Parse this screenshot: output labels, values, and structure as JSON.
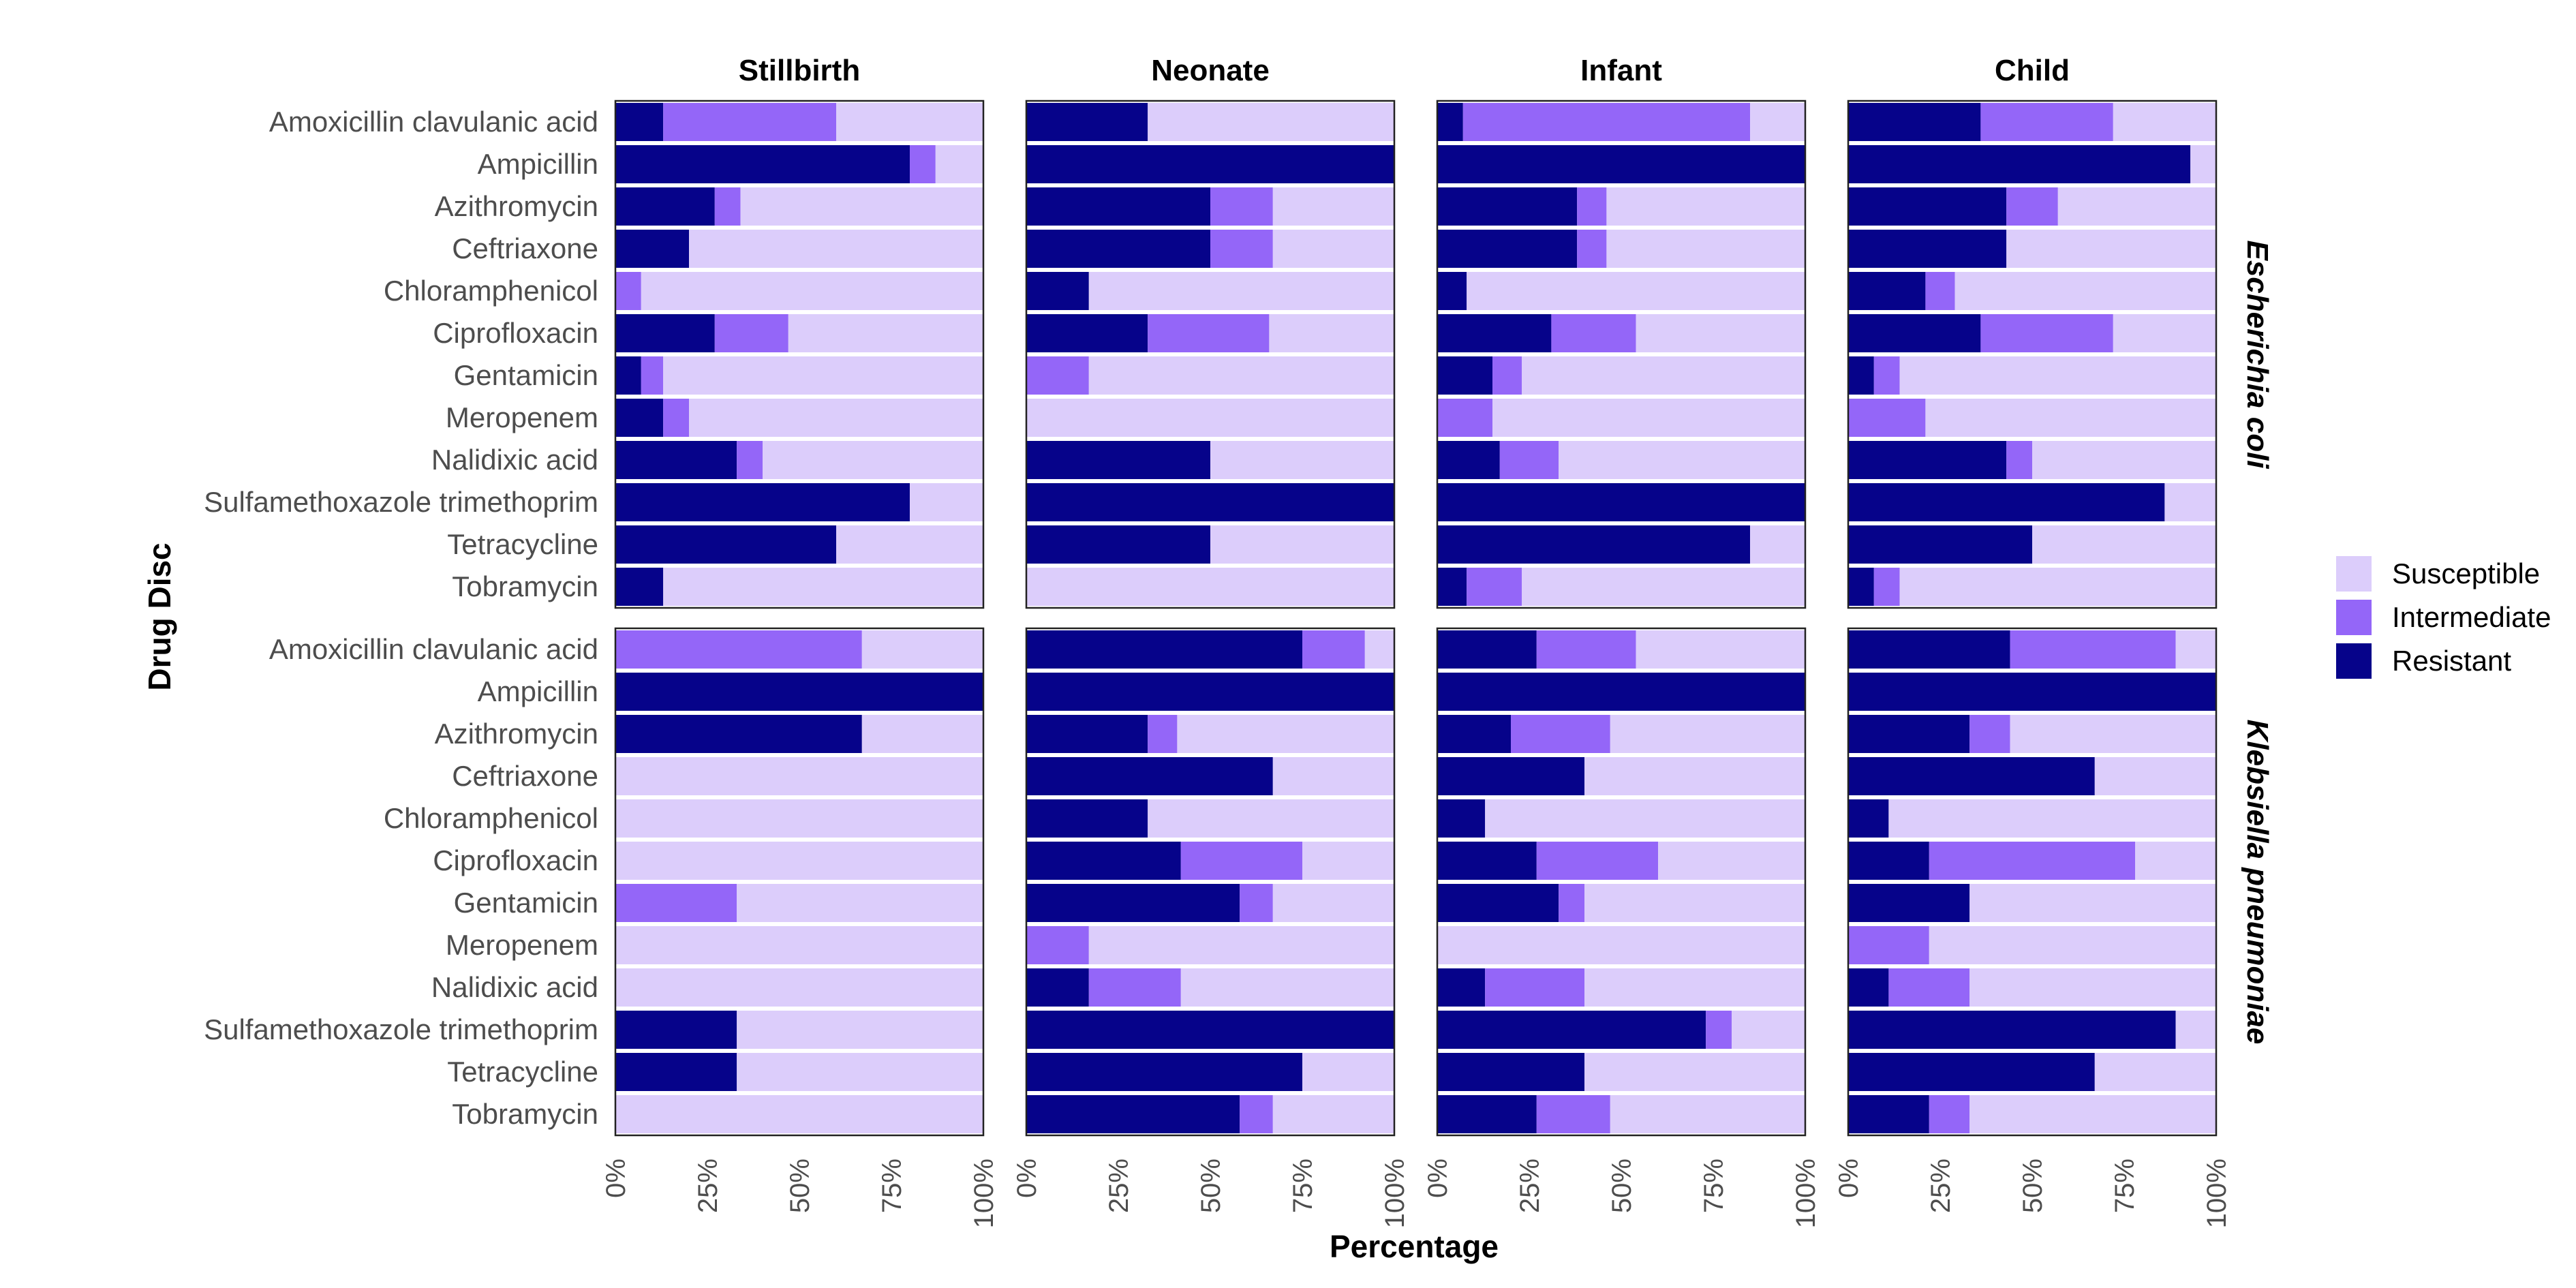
{
  "chart_data": {
    "type": "bar",
    "orientation": "horizontal",
    "stacked": true,
    "xlabel": "Percentage",
    "ylabel": "Drug Disc",
    "xlim": [
      0,
      100
    ],
    "x_ticks": [
      "0%",
      "25%",
      "50%",
      "75%",
      "100%"
    ],
    "facet_columns": [
      "Stillbirth",
      "Neonate",
      "Infant",
      "Child"
    ],
    "facet_rows": [
      "Escherichia coli",
      "Klebsiella pneumoniae"
    ],
    "categories": [
      "Amoxicillin clavulanic acid",
      "Ampicillin",
      "Azithromycin",
      "Ceftriaxone",
      "Chloramphenicol",
      "Ciprofloxacin",
      "Gentamicin",
      "Meropenem",
      "Nalidixic acid",
      "Sulfamethoxazole trimethoprim",
      "Tetracycline",
      "Tobramycin"
    ],
    "legend": {
      "position": "right",
      "entries": [
        {
          "label": "Susceptible",
          "color": "#dccdfb"
        },
        {
          "label": "Intermediate",
          "color": "#9466f8"
        },
        {
          "label": "Resistant",
          "color": "#06038a"
        }
      ]
    },
    "stack_order": [
      "Resistant",
      "Intermediate",
      "Susceptible"
    ],
    "panels": {
      "Escherichia coli": {
        "Stillbirth": [
          [
            13,
            47
          ],
          [
            80,
            7
          ],
          [
            27,
            7
          ],
          [
            20,
            0
          ],
          [
            0,
            7
          ],
          [
            27,
            20
          ],
          [
            7,
            6
          ],
          [
            13,
            7
          ],
          [
            33,
            7
          ],
          [
            80,
            0
          ],
          [
            60,
            0
          ],
          [
            13,
            0
          ]
        ],
        "Neonate": [
          [
            33,
            0
          ],
          [
            100,
            0
          ],
          [
            50,
            17
          ],
          [
            50,
            17
          ],
          [
            17,
            0
          ],
          [
            33,
            33
          ],
          [
            0,
            17
          ],
          [
            0,
            0
          ],
          [
            50,
            0
          ],
          [
            100,
            0
          ],
          [
            50,
            0
          ],
          [
            0,
            0
          ]
        ],
        "Infant": [
          [
            7,
            78
          ],
          [
            100,
            0
          ],
          [
            38,
            8
          ],
          [
            38,
            8
          ],
          [
            8,
            0
          ],
          [
            31,
            23
          ],
          [
            15,
            8
          ],
          [
            0,
            15
          ],
          [
            17,
            16
          ],
          [
            100,
            0
          ],
          [
            85,
            0
          ],
          [
            8,
            15
          ]
        ],
        "Child": [
          [
            36,
            36
          ],
          [
            93,
            0
          ],
          [
            43,
            14
          ],
          [
            43,
            0
          ],
          [
            21,
            8
          ],
          [
            36,
            36
          ],
          [
            7,
            7
          ],
          [
            0,
            21
          ],
          [
            43,
            7
          ],
          [
            86,
            0
          ],
          [
            50,
            0
          ],
          [
            7,
            7
          ]
        ]
      },
      "Klebsiella pneumoniae": {
        "Stillbirth": [
          [
            0,
            67
          ],
          [
            100,
            0
          ],
          [
            67,
            0
          ],
          [
            0,
            0
          ],
          [
            0,
            0
          ],
          [
            0,
            0
          ],
          [
            0,
            33
          ],
          [
            0,
            0
          ],
          [
            0,
            0
          ],
          [
            33,
            0
          ],
          [
            33,
            0
          ],
          [
            0,
            0
          ]
        ],
        "Neonate": [
          [
            75,
            17
          ],
          [
            100,
            0
          ],
          [
            33,
            8
          ],
          [
            67,
            0
          ],
          [
            33,
            0
          ],
          [
            42,
            33
          ],
          [
            58,
            9
          ],
          [
            0,
            17
          ],
          [
            17,
            25
          ],
          [
            100,
            0
          ],
          [
            75,
            0
          ],
          [
            58,
            9
          ]
        ],
        "Infant": [
          [
            27,
            27
          ],
          [
            100,
            0
          ],
          [
            20,
            27
          ],
          [
            40,
            0
          ],
          [
            13,
            0
          ],
          [
            27,
            33
          ],
          [
            33,
            7
          ],
          [
            0,
            0
          ],
          [
            13,
            27
          ],
          [
            73,
            7
          ],
          [
            40,
            0
          ],
          [
            27,
            20
          ]
        ],
        "Child": [
          [
            44,
            45
          ],
          [
            100,
            0
          ],
          [
            33,
            11
          ],
          [
            67,
            0
          ],
          [
            11,
            0
          ],
          [
            22,
            56
          ],
          [
            33,
            0
          ],
          [
            0,
            22
          ],
          [
            11,
            22
          ],
          [
            89,
            0
          ],
          [
            67,
            0
          ],
          [
            22,
            11
          ]
        ]
      }
    }
  }
}
